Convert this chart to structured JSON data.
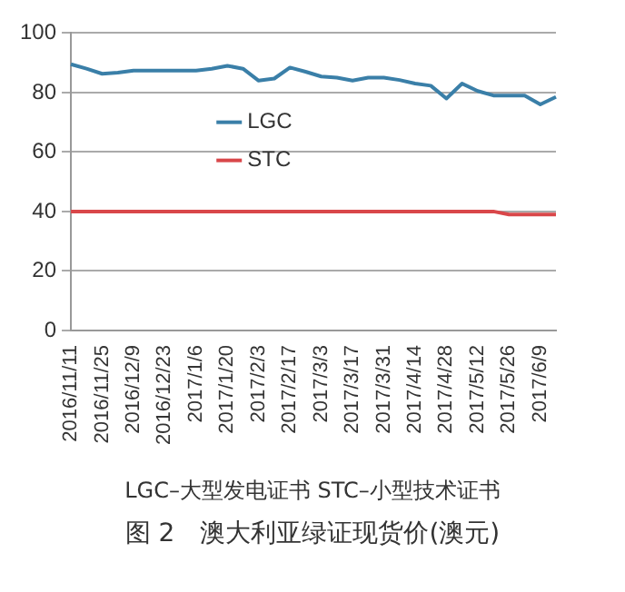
{
  "chart_data": {
    "type": "line",
    "categories": [
      "2016/11/11",
      null,
      "2016/11/25",
      null,
      "2016/12/9",
      null,
      "2016/12/23",
      null,
      "2017/1/6",
      null,
      "2017/1/20",
      null,
      "2017/2/3",
      null,
      "2017/2/17",
      null,
      "2017/3/3",
      null,
      "2017/3/17",
      null,
      "2017/3/31",
      null,
      "2017/4/14",
      null,
      "2017/4/28",
      null,
      "2017/5/12",
      null,
      "2017/5/26",
      null,
      "2017/6/9",
      null
    ],
    "series": [
      {
        "name": "LGC",
        "color": "#3a7fa8",
        "values": [
          89.5,
          88,
          86.3,
          86.7,
          87.4,
          87.4,
          87.4,
          87.4,
          87.4,
          88,
          89,
          88,
          84,
          84.7,
          88.4,
          87,
          85.4,
          85,
          84,
          85,
          85,
          84.2,
          83,
          82.3,
          78,
          83,
          80.5,
          79,
          79,
          79,
          76,
          78.5
        ]
      },
      {
        "name": "STC",
        "color": "#d9474a",
        "values": [
          40,
          40,
          40,
          40,
          40,
          40,
          40,
          40,
          40,
          40,
          40,
          40,
          40,
          40,
          40,
          40,
          40,
          40,
          40,
          40,
          40,
          40,
          40,
          40,
          40,
          40,
          40,
          40,
          39,
          39,
          39,
          39
        ]
      }
    ],
    "ylim": [
      0,
      100
    ],
    "yticks": [
      0,
      20,
      40,
      60,
      80,
      100
    ],
    "grid": "y",
    "legend": "center left",
    "marker": "none",
    "line_style": "solid",
    "annotations": [
      "LGC–大型发电证书  STC–小型技术证书",
      "图 2　澳大利亚绿证现货价(澳元)"
    ]
  }
}
